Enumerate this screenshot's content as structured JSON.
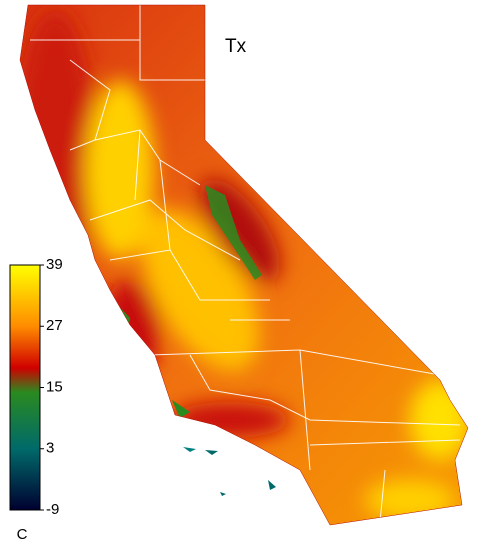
{
  "title": "Tx",
  "colorbar": {
    "lim": [
      -9,
      39
    ],
    "ticks": [
      39,
      27,
      15,
      3,
      -9
    ],
    "unit": "C"
  }
}
